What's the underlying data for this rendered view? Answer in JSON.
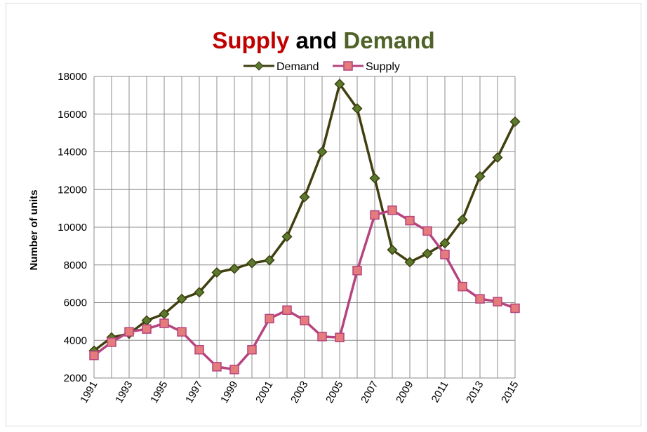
{
  "chart_data": {
    "type": "line",
    "title_parts": [
      {
        "text": "Supply",
        "color": "#c00000"
      },
      {
        "text": " and ",
        "color": "#000000"
      },
      {
        "text": "Demand",
        "color": "#4f6228"
      }
    ],
    "xlabel": "",
    "ylabel": "Number of units",
    "ylim": [
      2000,
      18000
    ],
    "ytick_step": 2000,
    "x": [
      1991,
      1992,
      1993,
      1994,
      1995,
      1996,
      1997,
      1998,
      1999,
      2000,
      2001,
      2002,
      2003,
      2004,
      2005,
      2006,
      2007,
      2008,
      2009,
      2010,
      2011,
      2012,
      2013,
      2014,
      2015
    ],
    "xtick_labels": [
      "1991",
      "1993",
      "1995",
      "1997",
      "1999",
      "2001",
      "2003",
      "2005",
      "2007",
      "2009",
      "2011",
      "2013",
      "2015"
    ],
    "grid": true,
    "legend_position": "top-center",
    "series": [
      {
        "name": "Demand",
        "color": "#3f3f0f",
        "marker": "diamond",
        "marker_color": "#5a7a2e",
        "values": [
          3450,
          4150,
          4350,
          5050,
          5400,
          6200,
          6550,
          7600,
          7800,
          8100,
          8250,
          9500,
          11600,
          14000,
          17600,
          16300,
          12600,
          8800,
          8150,
          8600,
          9150,
          10400,
          12700,
          13700,
          15600
        ]
      },
      {
        "name": "Supply",
        "color": "#b5447f",
        "marker": "square",
        "marker_color": "#e57b7b",
        "values": [
          3200,
          3900,
          4450,
          4600,
          4900,
          4450,
          3500,
          2600,
          2450,
          3500,
          5150,
          5600,
          5050,
          4200,
          4150,
          7700,
          10650,
          10900,
          10350,
          9800,
          8550,
          6850,
          6200,
          6050,
          5700
        ]
      }
    ]
  }
}
